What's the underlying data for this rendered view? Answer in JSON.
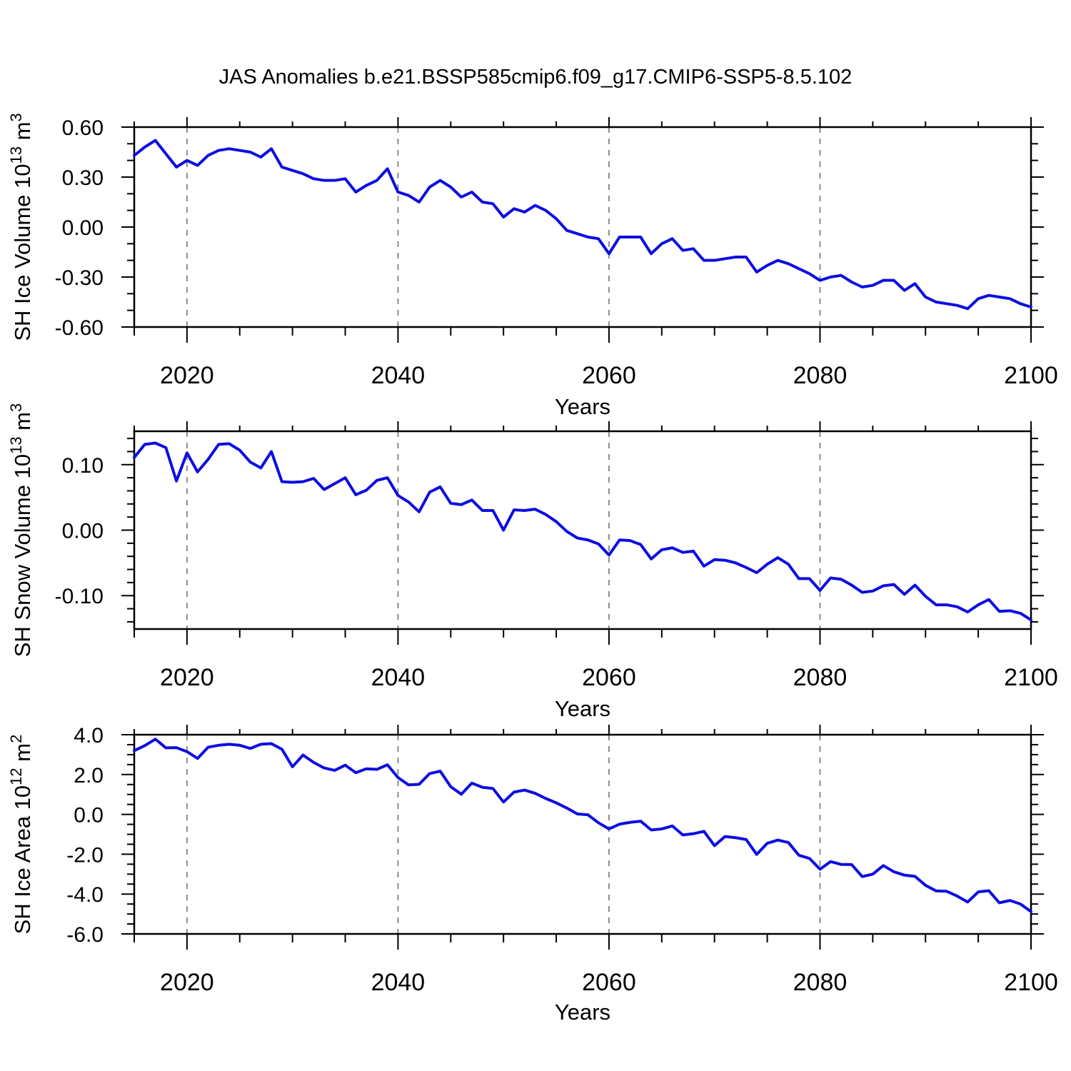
{
  "title": "JAS Anomalies b.e21.BSSP585cmip6.f09_g17.CMIP6-SSP5-8.5.102",
  "colors": {
    "line": "#0d0de0",
    "grid": "#8c8c8c",
    "axis": "#000000",
    "background": "#ffffff"
  },
  "x_axis": {
    "label": "Years",
    "range": [
      2015,
      2100
    ],
    "major_ticks": [
      2020,
      2040,
      2060,
      2080,
      2100
    ],
    "minor_step": 5,
    "gridline_years": [
      2020,
      2040,
      2060,
      2080
    ]
  },
  "chart_data": [
    {
      "type": "line",
      "title": "JAS Anomalies b.e21.BSSP585cmip6.f09_g17.CMIP6-SSP5-8.5.102",
      "ylabel": "SH Ice Volume 10^13 m^3",
      "ylabel_parts": [
        [
          "t",
          "SH Ice Volume 10"
        ],
        [
          "s",
          "13"
        ],
        [
          "t",
          " m"
        ],
        [
          "s",
          "3"
        ]
      ],
      "xlabel": "Years",
      "ylim": [
        -0.6,
        0.6
      ],
      "ytick_major": 0.3,
      "ytick_minor": 0.1,
      "yticks": [
        {
          "v": 0.6,
          "label": "0.60"
        },
        {
          "v": 0.3,
          "label": "0.30"
        },
        {
          "v": 0.0,
          "label": "0.00"
        },
        {
          "v": -0.3,
          "label": "-0.30"
        },
        {
          "v": -0.6,
          "label": "-0.60"
        }
      ],
      "x": {
        "start": 2015,
        "end": 2100,
        "step": 1
      },
      "values": [
        0.43,
        0.48,
        0.52,
        0.44,
        0.36,
        0.4,
        0.37,
        0.43,
        0.46,
        0.47,
        0.46,
        0.45,
        0.42,
        0.47,
        0.36,
        0.34,
        0.32,
        0.29,
        0.28,
        0.28,
        0.29,
        0.21,
        0.25,
        0.28,
        0.35,
        0.21,
        0.19,
        0.15,
        0.24,
        0.28,
        0.24,
        0.18,
        0.21,
        0.15,
        0.14,
        0.06,
        0.11,
        0.09,
        0.13,
        0.1,
        0.05,
        -0.02,
        -0.04,
        -0.06,
        -0.07,
        -0.16,
        -0.06,
        -0.06,
        -0.06,
        -0.16,
        -0.1,
        -0.07,
        -0.14,
        -0.13,
        -0.2,
        -0.2,
        -0.19,
        -0.18,
        -0.18,
        -0.27,
        -0.23,
        -0.2,
        -0.22,
        -0.25,
        -0.28,
        -0.32,
        -0.3,
        -0.29,
        -0.33,
        -0.36,
        -0.35,
        -0.32,
        -0.32,
        -0.38,
        -0.34,
        -0.42,
        -0.45,
        -0.46,
        -0.47,
        -0.49,
        -0.43,
        -0.41,
        -0.42,
        -0.43,
        -0.46,
        -0.48
      ]
    },
    {
      "type": "line",
      "ylabel": "SH Snow Volume 10^13 m^3",
      "ylabel_parts": [
        [
          "t",
          "SH Snow Volume 10"
        ],
        [
          "s",
          "13"
        ],
        [
          "t",
          " m"
        ],
        [
          "s",
          "3"
        ]
      ],
      "xlabel": "Years",
      "ylim": [
        -0.151,
        0.151
      ],
      "ytick_major": 0.1,
      "ytick_minor": 0.02,
      "yticks": [
        {
          "v": 0.1,
          "label": "0.10"
        },
        {
          "v": 0.0,
          "label": "0.00"
        },
        {
          "v": -0.1,
          "label": "-0.10"
        }
      ],
      "x": {
        "start": 2015,
        "end": 2100,
        "step": 1
      },
      "values": [
        0.111,
        0.131,
        0.133,
        0.126,
        0.075,
        0.118,
        0.089,
        0.108,
        0.131,
        0.132,
        0.122,
        0.104,
        0.095,
        0.12,
        0.074,
        0.073,
        0.074,
        0.079,
        0.062,
        0.071,
        0.08,
        0.054,
        0.061,
        0.076,
        0.08,
        0.053,
        0.043,
        0.028,
        0.058,
        0.066,
        0.041,
        0.039,
        0.046,
        0.03,
        0.03,
        0.0,
        0.031,
        0.03,
        0.032,
        0.024,
        0.013,
        -0.002,
        -0.012,
        -0.015,
        -0.021,
        -0.038,
        -0.015,
        -0.016,
        -0.022,
        -0.044,
        -0.03,
        -0.027,
        -0.034,
        -0.032,
        -0.055,
        -0.045,
        -0.046,
        -0.05,
        -0.057,
        -0.065,
        -0.052,
        -0.042,
        -0.052,
        -0.074,
        -0.074,
        -0.092,
        -0.073,
        -0.075,
        -0.084,
        -0.095,
        -0.093,
        -0.085,
        -0.083,
        -0.098,
        -0.084,
        -0.101,
        -0.114,
        -0.114,
        -0.117,
        -0.125,
        -0.114,
        -0.106,
        -0.124,
        -0.123,
        -0.127,
        -0.137
      ]
    },
    {
      "type": "line",
      "ylabel": "SH Ice Area 10^12 m^2",
      "ylabel_parts": [
        [
          "t",
          "SH Ice Area 10"
        ],
        [
          "s",
          "12"
        ],
        [
          "t",
          " m"
        ],
        [
          "s",
          "2"
        ]
      ],
      "xlabel": "Years",
      "ylim": [
        -6.0,
        4.0
      ],
      "ytick_major": 2.0,
      "ytick_minor": 0.5,
      "yticks": [
        {
          "v": 4.0,
          "label": "4.0"
        },
        {
          "v": 2.0,
          "label": "2.0"
        },
        {
          "v": 0.0,
          "label": "0.0"
        },
        {
          "v": -2.0,
          "label": "-2.0"
        },
        {
          "v": -4.0,
          "label": "-4.0"
        },
        {
          "v": -6.0,
          "label": "-6.0"
        }
      ],
      "x": {
        "start": 2015,
        "end": 2100,
        "step": 1
      },
      "values": [
        3.2,
        3.45,
        3.78,
        3.34,
        3.35,
        3.15,
        2.81,
        3.37,
        3.47,
        3.52,
        3.47,
        3.31,
        3.52,
        3.55,
        3.27,
        2.39,
        2.98,
        2.61,
        2.33,
        2.21,
        2.47,
        2.09,
        2.29,
        2.26,
        2.49,
        1.85,
        1.48,
        1.51,
        2.05,
        2.17,
        1.39,
        1.01,
        1.57,
        1.36,
        1.3,
        0.62,
        1.12,
        1.22,
        1.06,
        0.8,
        0.58,
        0.32,
        0.02,
        -0.02,
        -0.42,
        -0.73,
        -0.49,
        -0.4,
        -0.34,
        -0.78,
        -0.73,
        -0.58,
        -1.03,
        -0.97,
        -0.85,
        -1.57,
        -1.11,
        -1.17,
        -1.26,
        -2.01,
        -1.45,
        -1.29,
        -1.41,
        -2.05,
        -2.21,
        -2.75,
        -2.37,
        -2.51,
        -2.52,
        -3.12,
        -3.0,
        -2.57,
        -2.88,
        -3.05,
        -3.11,
        -3.56,
        -3.84,
        -3.86,
        -4.1,
        -4.4,
        -3.89,
        -3.83,
        -4.44,
        -4.32,
        -4.5,
        -4.88
      ]
    }
  ]
}
